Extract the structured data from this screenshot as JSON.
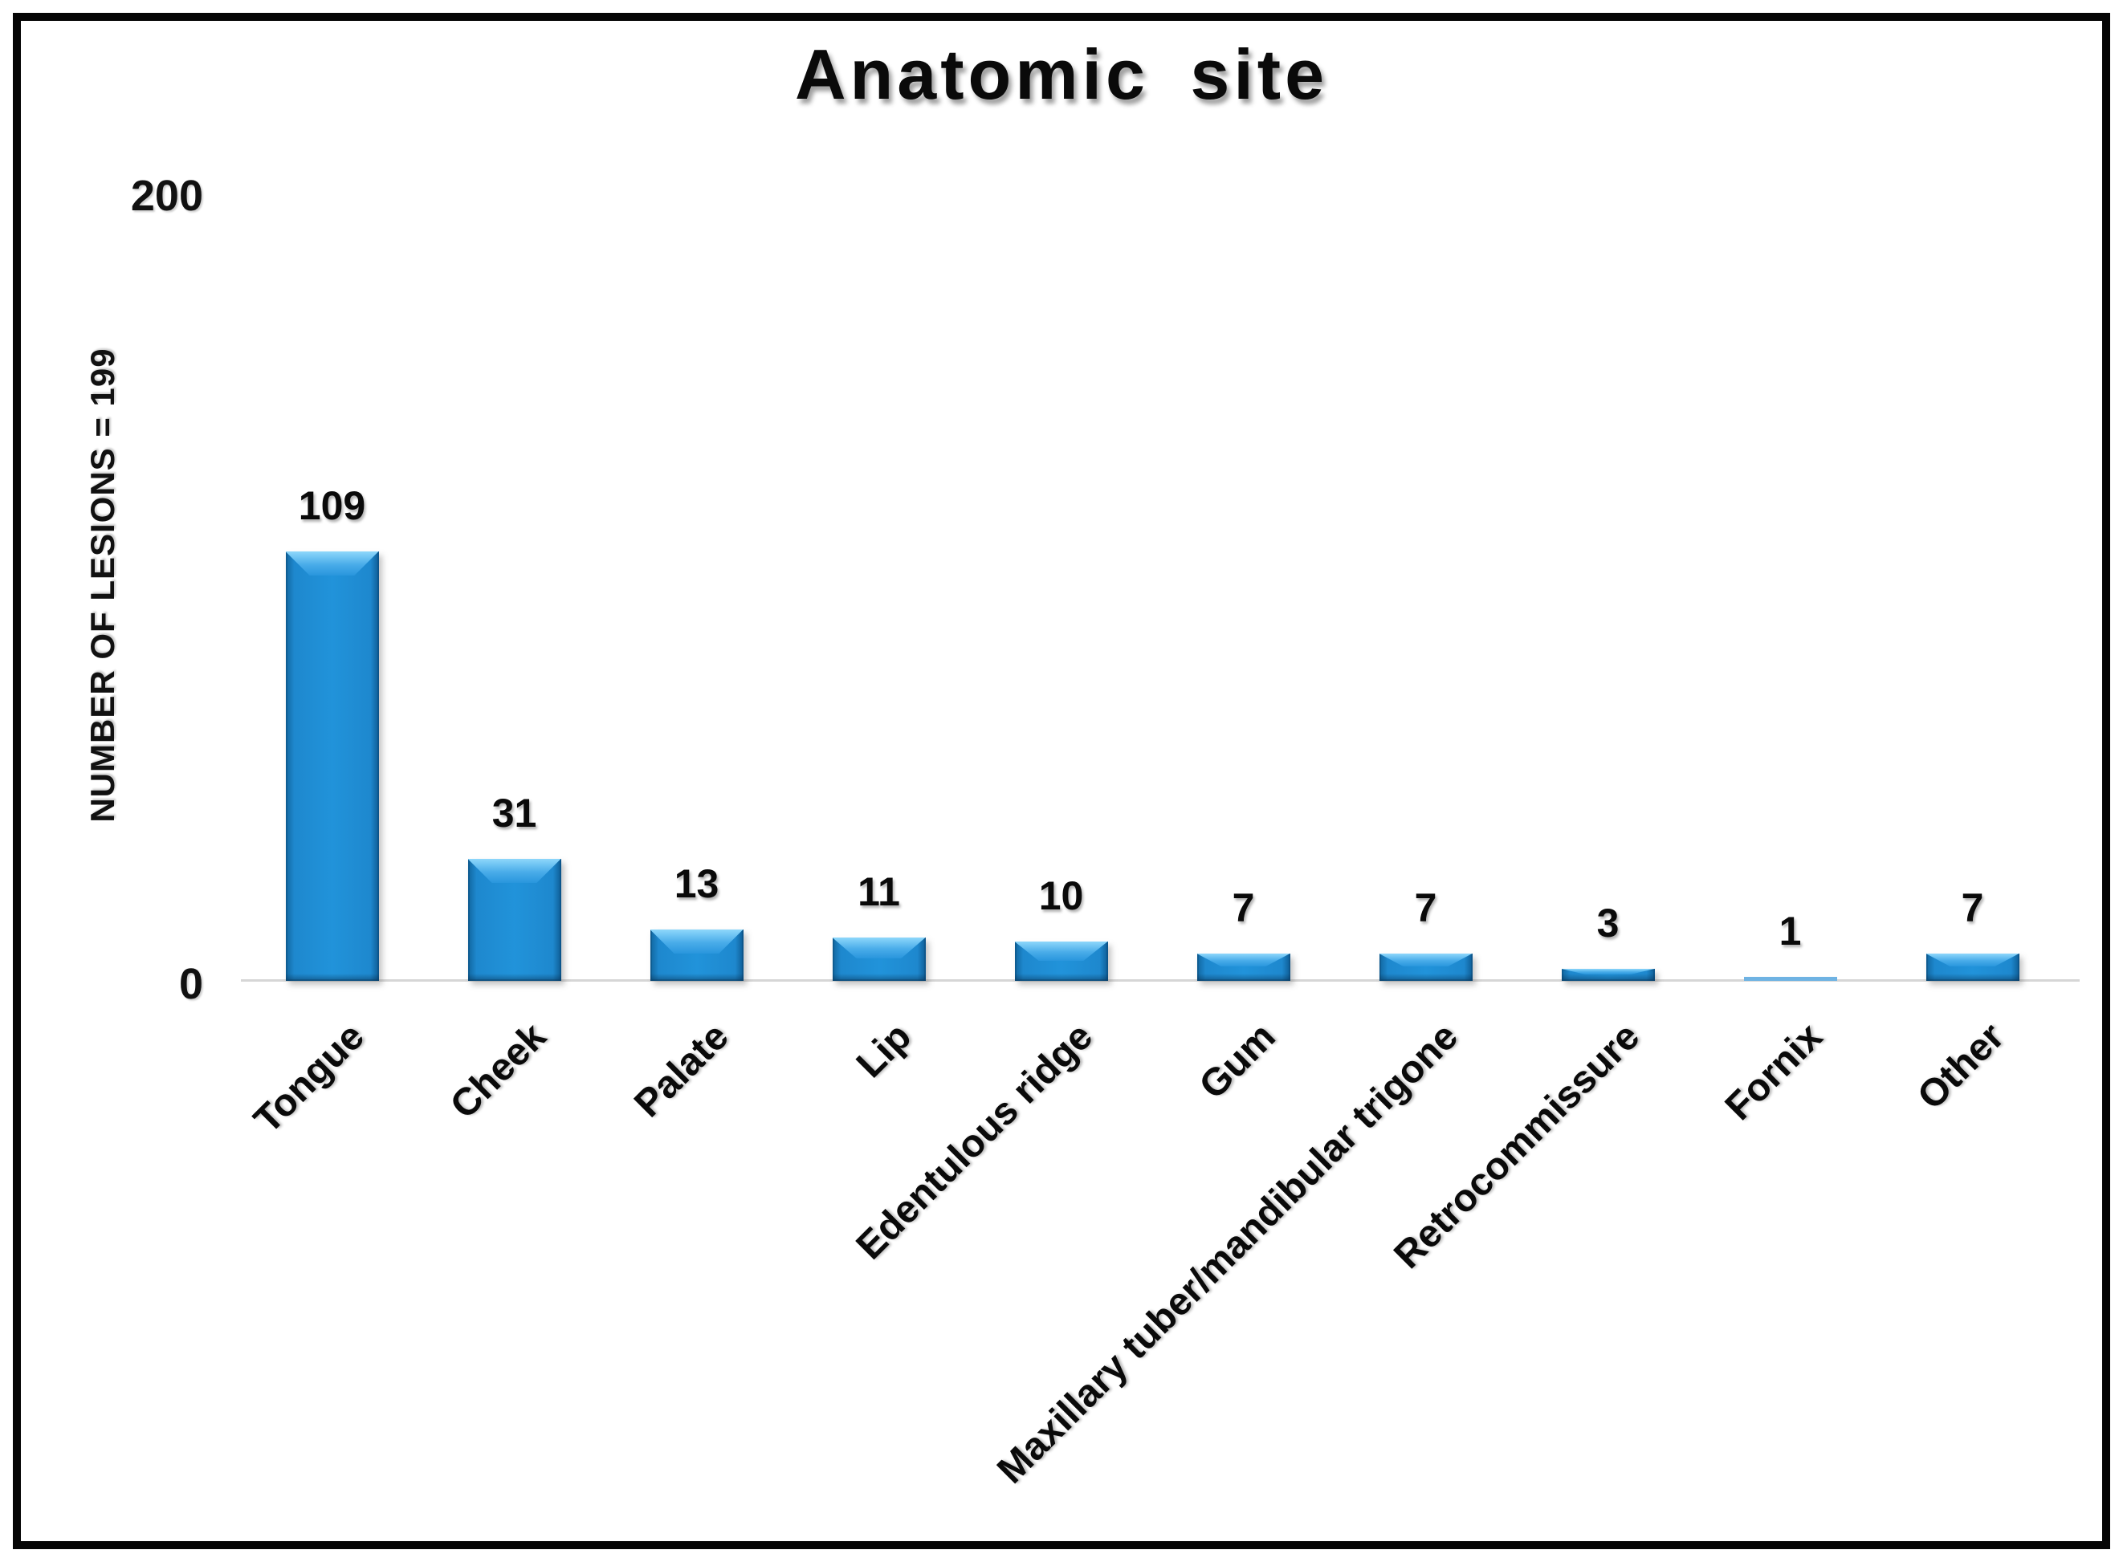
{
  "figure": {
    "title": "Anatomic site",
    "y_axis": {
      "label": "NUMBER OF LESIONS = 199",
      "ticks": [
        "0",
        "200"
      ]
    }
  },
  "chart_data": {
    "type": "bar",
    "title": "Anatomic site",
    "xlabel": "",
    "ylabel": "NUMBER OF LESIONS = 199",
    "ylim": [
      0,
      200
    ],
    "yticks": [
      0,
      200
    ],
    "grid": false,
    "legend": "none",
    "bar_color": "#1e88ce",
    "bar_bevel_highlight": "#8ed7fb",
    "axis_line_color": "#d6d6d6",
    "categories": [
      "Tongue",
      "Cheek",
      "Palate",
      "Lip",
      "Edentulous ridge",
      "Gum",
      "Maxillary tuber/mandibular trigone",
      "Retrocommissure",
      "Fornix",
      "Other"
    ],
    "values": [
      109,
      31,
      13,
      11,
      10,
      7,
      7,
      3,
      1,
      7
    ],
    "total_lesions": 199
  }
}
